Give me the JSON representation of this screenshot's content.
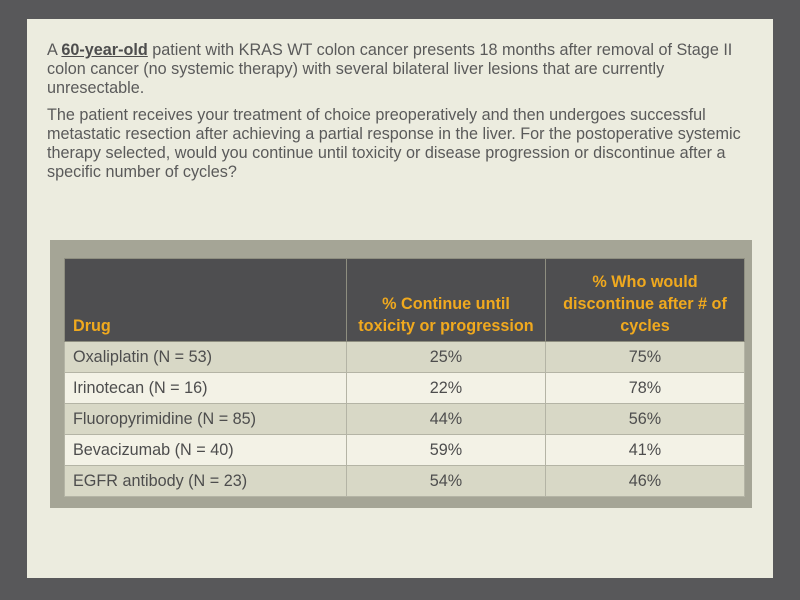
{
  "intro": {
    "prefix": "A ",
    "emphasis": "60-year-old",
    "rest": " patient with KRAS WT colon cancer presents 18 months after removal of Stage II colon cancer (no systemic therapy) with several bilateral liver lesions that are currently unresectable."
  },
  "question": "The patient receives your treatment of choice preoperatively and then undergoes successful metastatic resection after achieving a partial response in the liver. For the postoperative systemic therapy selected, would you continue until toxicity or disease progression or discontinue after a specific number of cycles?",
  "table": {
    "headers": {
      "drug": "Drug",
      "continue": "% Continue until toxicity or progression",
      "discontinue": "% Who would discontinue after # of cycles"
    },
    "rows": [
      {
        "drug": "Oxaliplatin (N = 53)",
        "continue": "25%",
        "discontinue": "75%"
      },
      {
        "drug": "Irinotecan (N = 16)",
        "continue": "22%",
        "discontinue": "78%"
      },
      {
        "drug": "Fluoropyrimidine (N = 85)",
        "continue": "44%",
        "discontinue": "56%"
      },
      {
        "drug": "Bevacizumab (N = 40)",
        "continue": "59%",
        "discontinue": "41%"
      },
      {
        "drug": "EGFR antibody (N = 23)",
        "continue": "54%",
        "discontinue": "46%"
      }
    ]
  },
  "colors": {
    "header_bg": "#4e4e50",
    "header_text": "#f0a91e",
    "slide_bg": "#ececdf",
    "outer_bg": "#58585a"
  }
}
